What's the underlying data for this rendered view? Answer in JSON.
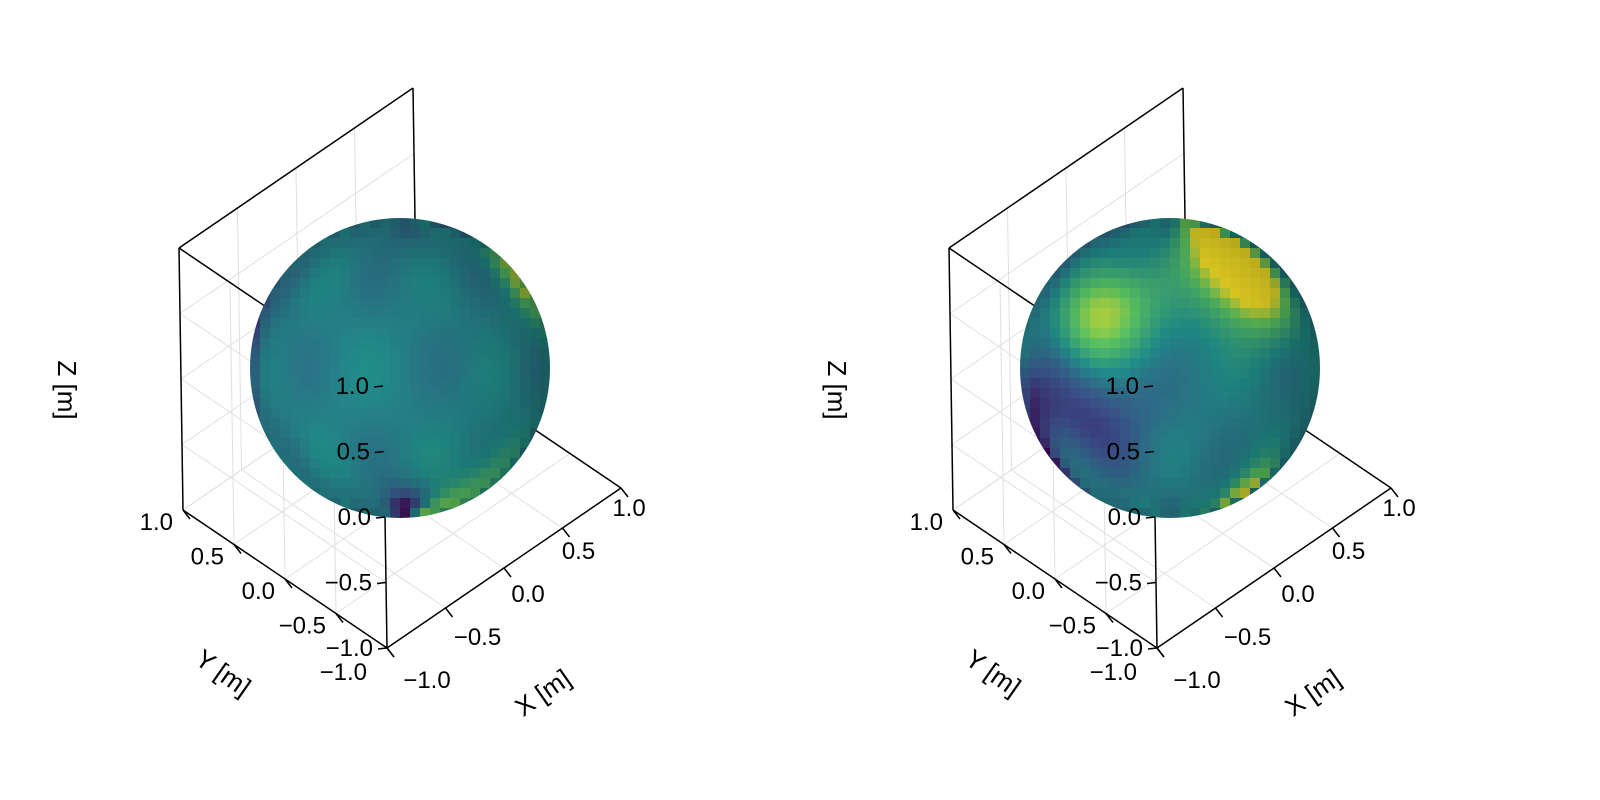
{
  "chart_data": [
    {
      "type": "surface3d",
      "title": "",
      "xlabel": "X [m]",
      "ylabel": "Y [m]",
      "zlabel": "Z [m]",
      "xlim": [
        -1.0,
        1.0
      ],
      "ylim": [
        -1.0,
        1.0
      ],
      "zlim": [
        -1.0,
        1.0
      ],
      "xticks": [
        "−1.0",
        "−0.5",
        "0.0",
        "0.5",
        "1.0"
      ],
      "yticks": [
        "−1.0",
        "−0.5",
        "0.0",
        "0.5",
        "1.0"
      ],
      "zticks": [
        "−1.0",
        "−0.5",
        "0.0",
        "0.5",
        "1.0"
      ],
      "grid": true,
      "surface": "unit sphere",
      "colormap": "viridis",
      "seed": 3
    },
    {
      "type": "surface3d",
      "title": "",
      "xlabel": "X [m]",
      "ylabel": "Y [m]",
      "zlabel": "Z [m]",
      "xlim": [
        -1.0,
        1.0
      ],
      "ylim": [
        -1.0,
        1.0
      ],
      "zlim": [
        -1.0,
        1.0
      ],
      "xticks": [
        "−1.0",
        "−0.5",
        "0.0",
        "0.5",
        "1.0"
      ],
      "yticks": [
        "−1.0",
        "−0.5",
        "0.0",
        "0.5",
        "1.0"
      ],
      "zticks": [
        "−1.0",
        "−0.5",
        "0.0",
        "0.5",
        "1.0"
      ],
      "grid": true,
      "surface": "unit sphere",
      "colormap": "viridis",
      "seed": 11
    }
  ],
  "colors": {
    "grid": "#e0e0e0",
    "frame": "#000000",
    "viridis_low": "#440154",
    "viridis_mid": "#21908c",
    "viridis_high": "#fde725"
  }
}
